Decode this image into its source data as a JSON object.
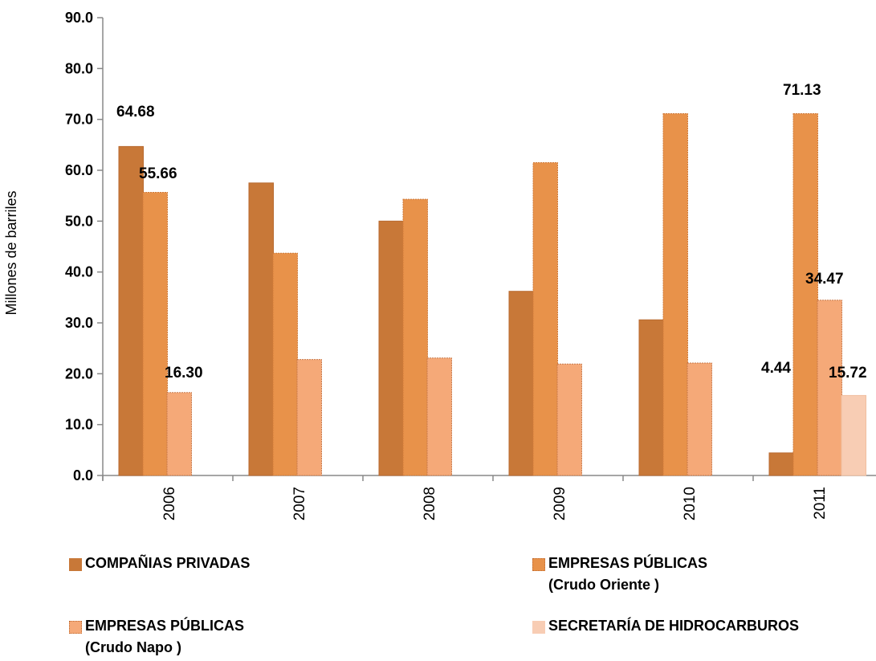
{
  "chart_data": {
    "type": "bar",
    "title": "",
    "xlabel": "",
    "ylabel": "Millones de barriles",
    "ylim": [
      0,
      90
    ],
    "yticks": [
      "0.0",
      "10.0",
      "20.0",
      "30.0",
      "40.0",
      "50.0",
      "60.0",
      "70.0",
      "80.0",
      "90.0"
    ],
    "categories": [
      "2006",
      "2007",
      "2008",
      "2009",
      "2010",
      "2011"
    ],
    "grid": false,
    "legend_position": "bottom",
    "series": [
      {
        "name": "COMPAÑIAS PRIVADAS",
        "name_line2": "",
        "color": "#c87838",
        "values": [
          64.68,
          57.5,
          50.0,
          36.2,
          30.6,
          4.44
        ],
        "labels": [
          "64.68",
          "",
          "",
          "",
          "",
          "4.44"
        ]
      },
      {
        "name": "EMPRESAS PÚBLICAS",
        "name_line2": "(Crudo Oriente )",
        "color": "#e8924a",
        "values": [
          55.66,
          43.7,
          54.3,
          61.5,
          71.13,
          71.13
        ],
        "labels": [
          "55.66",
          "",
          "",
          "",
          "",
          "71.13"
        ]
      },
      {
        "name": "EMPRESAS PÚBLICAS",
        "name_line2": "(Crudo Napo )",
        "color": "#f5a978",
        "values": [
          16.3,
          22.8,
          23.1,
          21.9,
          22.1,
          34.47
        ],
        "labels": [
          "16.30",
          "",
          "",
          "",
          "",
          "34.47"
        ]
      },
      {
        "name": "SECRETARÍA DE HIDROCARBUROS",
        "name_line2": "",
        "color": "#f8cdb4",
        "values": [
          null,
          null,
          null,
          null,
          null,
          15.72
        ],
        "labels": [
          "",
          "",
          "",
          "",
          "",
          "15.72"
        ]
      }
    ]
  },
  "legend": {
    "items": [
      {
        "line1": "COMPAÑIAS PRIVADAS",
        "line2": "",
        "color": "#c87838"
      },
      {
        "line1": "EMPRESAS PÚBLICAS",
        "line2": "(Crudo Oriente )",
        "color": "#e8924a"
      },
      {
        "line1": "EMPRESAS PÚBLICAS",
        "line2": "(Crudo Napo )",
        "color": "#f5a978"
      },
      {
        "line1": "SECRETARÍA DE HIDROCARBUROS",
        "line2": "",
        "color": "#f8cdb4"
      }
    ]
  }
}
